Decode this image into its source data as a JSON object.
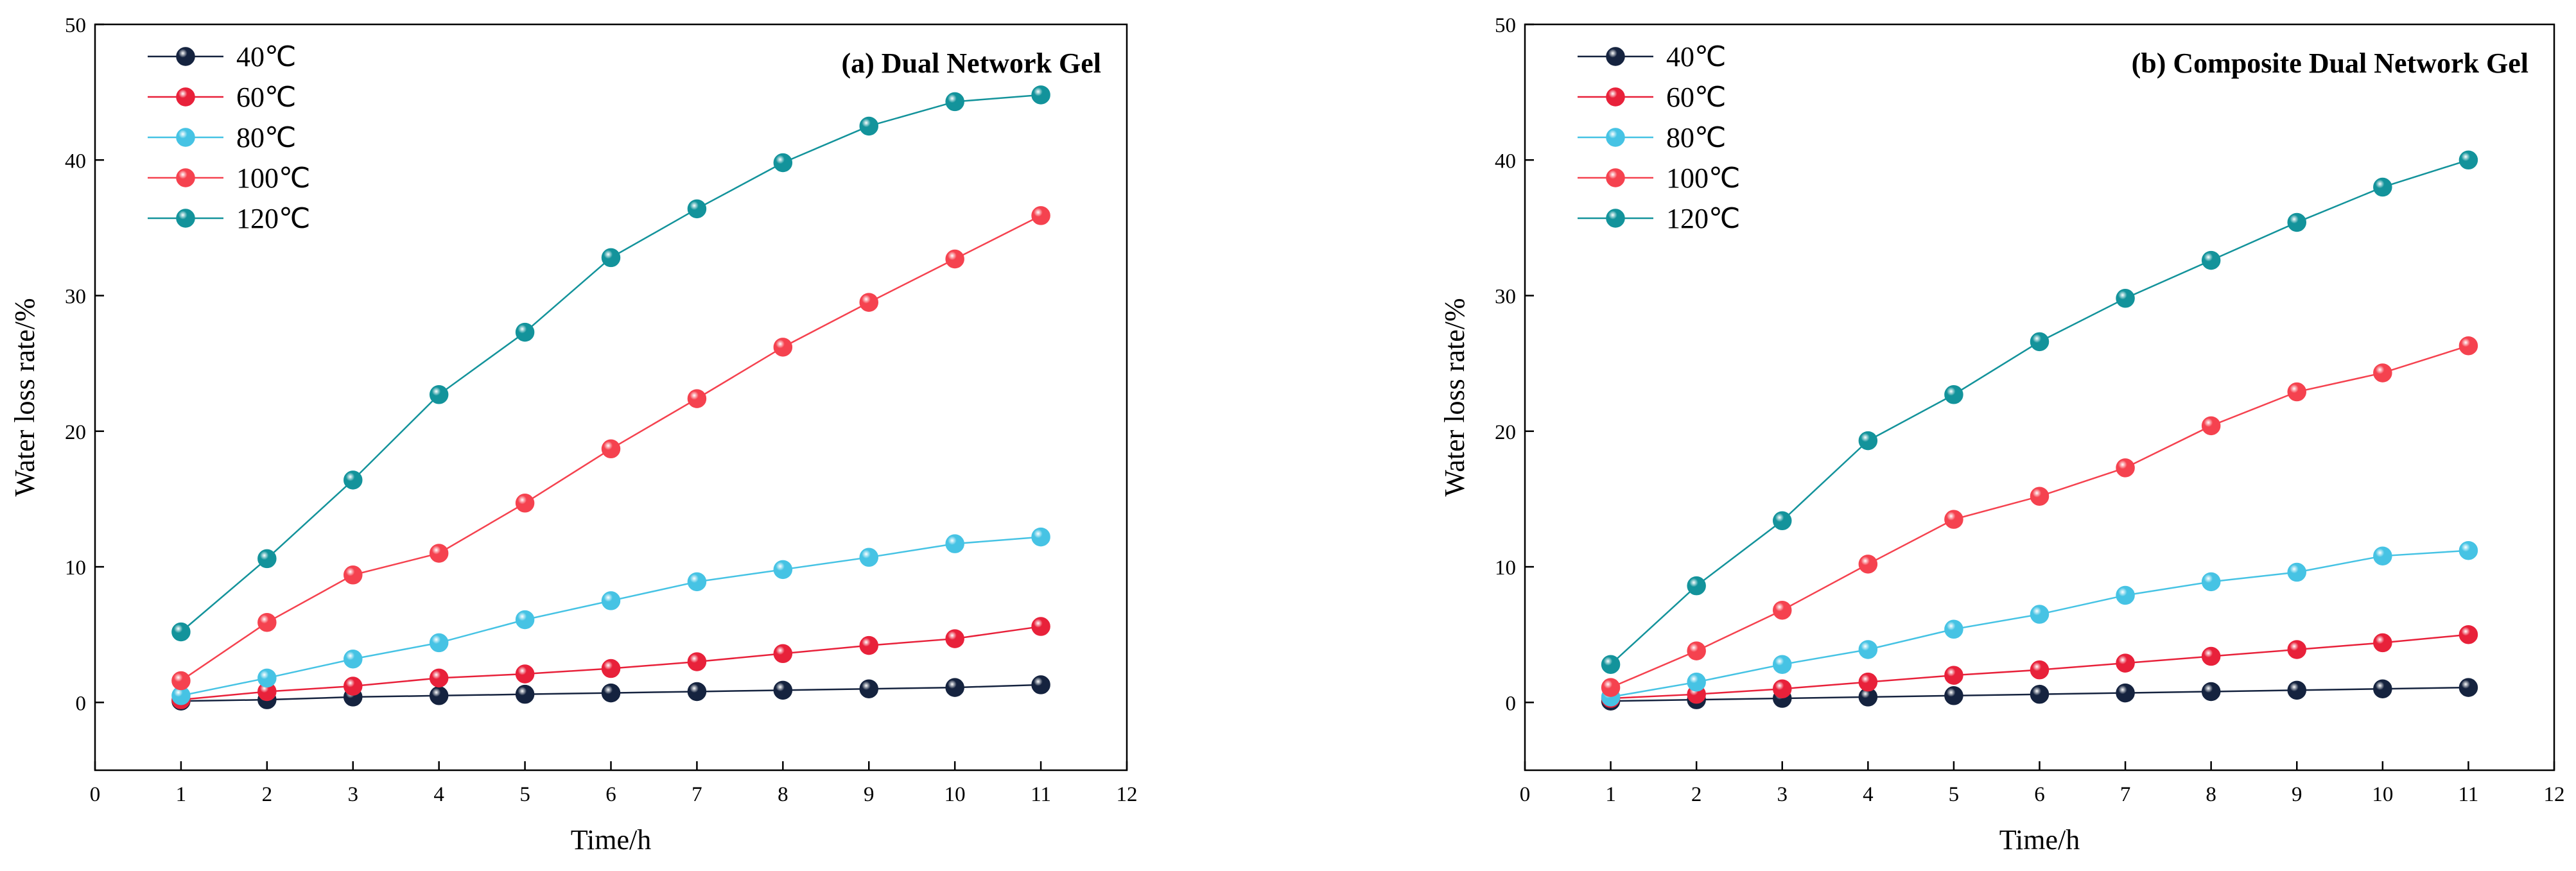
{
  "chart_data": [
    {
      "type": "line",
      "title": "(a) Dual Network Gel",
      "xlabel": "Time/h",
      "ylabel": "Water loss rate/%",
      "xlim": [
        0,
        12
      ],
      "ylim": [
        -5,
        50
      ],
      "xticks": [
        0,
        1,
        2,
        3,
        4,
        5,
        6,
        7,
        8,
        9,
        10,
        11,
        12
      ],
      "yticks": [
        0,
        10,
        20,
        30,
        40,
        50
      ],
      "x": [
        1,
        2,
        3,
        4,
        5,
        6,
        7,
        8,
        9,
        10,
        11
      ],
      "legend_position": "top-left",
      "series": [
        {
          "name": "40℃",
          "color": "#15233f",
          "values": [
            0.1,
            0.2,
            0.4,
            0.5,
            0.6,
            0.7,
            0.8,
            0.9,
            1.0,
            1.1,
            1.3
          ]
        },
        {
          "name": "60℃",
          "color": "#e8213a",
          "values": [
            0.2,
            0.8,
            1.2,
            1.8,
            2.1,
            2.5,
            3.0,
            3.6,
            4.2,
            4.7,
            5.6
          ]
        },
        {
          "name": "80℃",
          "color": "#46c3e4",
          "values": [
            0.5,
            1.8,
            3.2,
            4.4,
            6.1,
            7.5,
            8.9,
            9.8,
            10.7,
            11.7,
            12.2
          ]
        },
        {
          "name": "100℃",
          "color": "#f5424f",
          "values": [
            1.6,
            5.9,
            9.4,
            11.0,
            14.7,
            18.7,
            22.4,
            26.2,
            29.5,
            32.7,
            35.9
          ]
        },
        {
          "name": "120℃",
          "color": "#13939b",
          "values": [
            5.2,
            10.6,
            16.4,
            22.7,
            27.3,
            32.8,
            36.4,
            39.8,
            42.5,
            44.3,
            44.8
          ]
        }
      ]
    },
    {
      "type": "line",
      "title": "(b) Composite Dual Network Gel",
      "xlabel": "Time/h",
      "ylabel": "Water loss rate/%",
      "xlim": [
        0,
        12
      ],
      "ylim": [
        -5,
        50
      ],
      "xticks": [
        0,
        1,
        2,
        3,
        4,
        5,
        6,
        7,
        8,
        9,
        10,
        11,
        12
      ],
      "yticks": [
        0,
        10,
        20,
        30,
        40,
        50
      ],
      "x": [
        1,
        2,
        3,
        4,
        5,
        6,
        7,
        8,
        9,
        10,
        11
      ],
      "legend_position": "top-left",
      "series": [
        {
          "name": "40℃",
          "color": "#15233f",
          "values": [
            0.1,
            0.2,
            0.3,
            0.4,
            0.5,
            0.6,
            0.7,
            0.8,
            0.9,
            1.0,
            1.1
          ]
        },
        {
          "name": "60℃",
          "color": "#e8213a",
          "values": [
            0.3,
            0.6,
            1.0,
            1.5,
            2.0,
            2.4,
            2.9,
            3.4,
            3.9,
            4.4,
            5.0
          ]
        },
        {
          "name": "80℃",
          "color": "#46c3e4",
          "values": [
            0.4,
            1.5,
            2.8,
            3.9,
            5.4,
            6.5,
            7.9,
            8.9,
            9.6,
            10.8,
            11.2
          ]
        },
        {
          "name": "100℃",
          "color": "#f5424f",
          "values": [
            1.1,
            3.8,
            6.8,
            10.2,
            13.5,
            15.2,
            17.3,
            20.4,
            22.9,
            24.3,
            26.3
          ]
        },
        {
          "name": "120℃",
          "color": "#13939b",
          "values": [
            2.8,
            8.6,
            13.4,
            19.3,
            22.7,
            26.6,
            29.8,
            32.6,
            35.4,
            38.0,
            40.0
          ]
        }
      ]
    }
  ]
}
